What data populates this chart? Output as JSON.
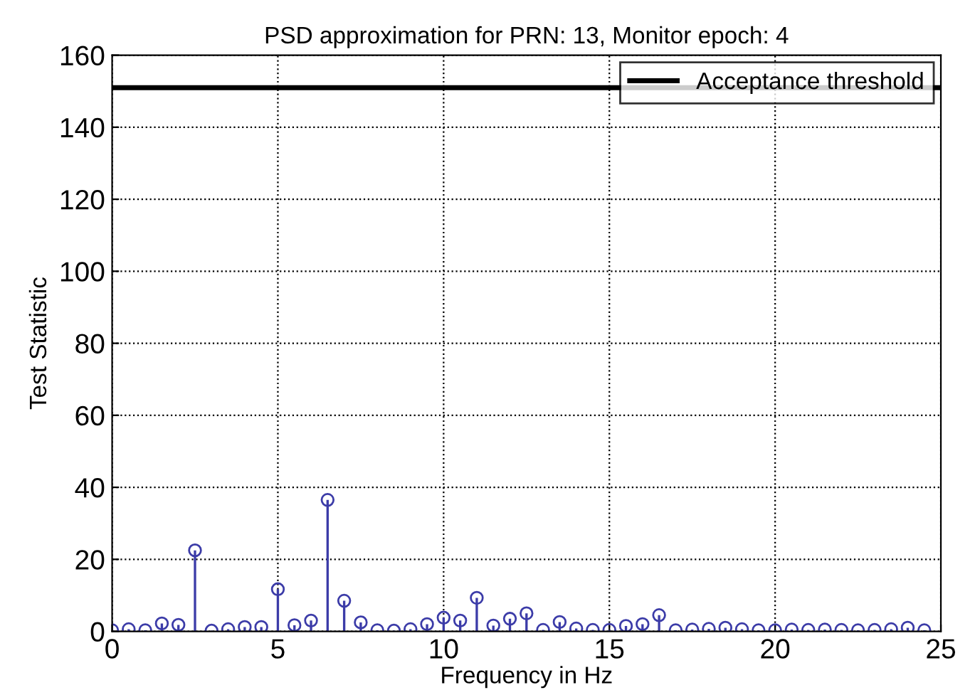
{
  "chart_data": {
    "type": "lollipop",
    "title": "PSD approximation for PRN: 13, Monitor epoch: 4",
    "xlabel": "Frequency in Hz",
    "ylabel": "Test Statistic",
    "xlim": [
      0,
      25
    ],
    "ylim": [
      0,
      160
    ],
    "xticks": [
      0,
      5,
      10,
      15,
      20,
      25
    ],
    "yticks": [
      0,
      20,
      40,
      60,
      80,
      100,
      120,
      140,
      160
    ],
    "grid": true,
    "legend": "top right",
    "marker": "circle",
    "series": [
      {
        "color": "#3c3ca8",
        "x": [
          0,
          0.5,
          1,
          1.5,
          2,
          2.5,
          3,
          3.5,
          4,
          4.5,
          5,
          5.5,
          6,
          6.5,
          7,
          7.5,
          8,
          8.5,
          9,
          9.5,
          10,
          10.5,
          11,
          11.5,
          12,
          12.5,
          13,
          13.5,
          14,
          14.5,
          15,
          15.5,
          16,
          16.5,
          17,
          17.5,
          18,
          18.5,
          19,
          19.5,
          20,
          20.5,
          21,
          21.5,
          22,
          22.5,
          23,
          23.5,
          24,
          24.5
        ],
        "values": [
          0.3,
          0.6,
          0.3,
          2.2,
          1.8,
          22.5,
          0.2,
          0.6,
          1.2,
          1.2,
          11.7,
          1.7,
          3,
          36.5,
          8.5,
          2.5,
          0.3,
          0.2,
          0.6,
          2,
          3.8,
          3,
          9.3,
          1.6,
          3.5,
          5,
          0.4,
          2.6,
          0.8,
          0.4,
          0.4,
          1.5,
          2,
          4.5,
          0.3,
          0.5,
          0.7,
          1,
          0.6,
          0.3,
          0.3,
          0.5,
          0.4,
          0.5,
          0.4,
          0.3,
          0.4,
          0.6,
          1,
          0.3
        ]
      },
      {
        "type": "line",
        "name": "Acceptance threshold",
        "color": "#000000",
        "marker": "none",
        "x": [
          0,
          25
        ],
        "values": [
          151,
          151
        ]
      }
    ]
  }
}
